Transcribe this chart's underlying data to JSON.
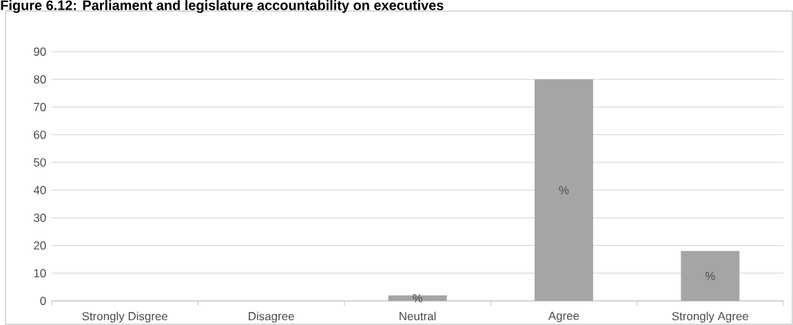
{
  "chart_data": {
    "type": "bar",
    "title": "Figure 6.12: Parliament and legislature accountability on executives",
    "categories": [
      "Strongly Disgree",
      "Disagree",
      "Neutral",
      "Agree",
      "Strongly Agree"
    ],
    "values": [
      0,
      0,
      2,
      80,
      18
    ],
    "color": "#a5a5a5",
    "value_labels": [
      null,
      null,
      "%",
      "%",
      "%"
    ],
    "ylim": [
      0,
      90
    ],
    "yticks": [
      0,
      10,
      20,
      30,
      40,
      50,
      60,
      70,
      80,
      90
    ],
    "grid": "y"
  }
}
